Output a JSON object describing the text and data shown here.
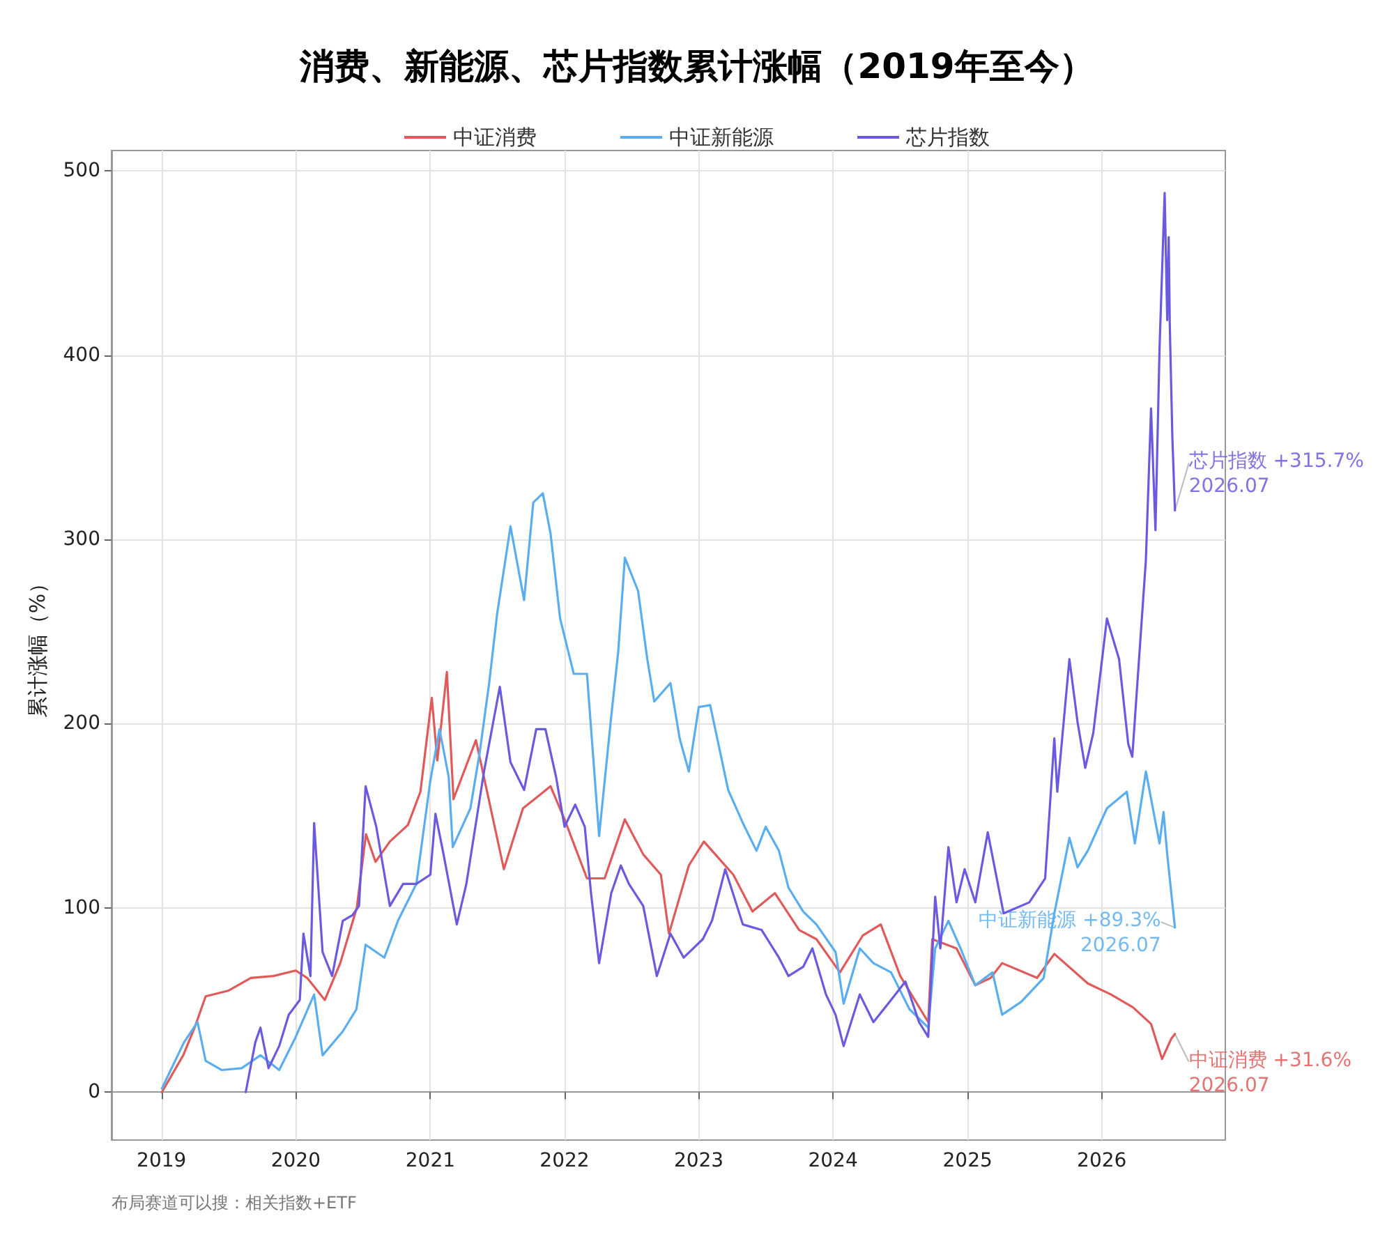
{
  "chart_data": {
    "type": "line",
    "title": "消费、新能源、芯片指数累计涨幅（2019年至今）",
    "ylabel": "累计涨幅（%）",
    "xlim": [
      "2018-08-18",
      "2026-12-03"
    ],
    "xticks": [
      "2019",
      "2020",
      "2021",
      "2022",
      "2023",
      "2024",
      "2025",
      "2026"
    ],
    "ylim": [
      -26,
      511
    ],
    "yticks": [
      0,
      100,
      200,
      300,
      400,
      500
    ],
    "grid": true,
    "legend": "top",
    "marker": "none",
    "line_style": "solid",
    "annotations": [
      {
        "text": "芯片指数 +315.7%\n2026.07",
        "x": "2026-07-19",
        "y": 315.7
      },
      {
        "text": "中证新能源 +89.3%\n2026.07",
        "x": "2026-07-19",
        "y": 89.3
      },
      {
        "text": "中证消费 +31.6%\n2026.07",
        "x": "2026-07-19",
        "y": 31.6
      },
      "布局赛道可以搜：相关指数+ETF"
    ],
    "series": [
      {
        "name": "中证消费",
        "color": "#e05a5a",
        "x": [
          "2019-01-02",
          "2019-03-01",
          "2019-04-01",
          "2019-05-01",
          "2019-07-01",
          "2019-09-01",
          "2019-11-01",
          "2020-01-01",
          "2020-02-01",
          "2020-03-20",
          "2020-05-01",
          "2020-06-15",
          "2020-07-10",
          "2020-08-05",
          "2020-09-13",
          "2020-11-01",
          "2020-12-05",
          "2021-01-05",
          "2021-01-20",
          "2021-02-15",
          "2021-03-05",
          "2021-05-05",
          "2021-07-20",
          "2021-09-10",
          "2021-11-24",
          "2022-01-01",
          "2022-03-03",
          "2022-04-20",
          "2022-06-14",
          "2022-08-03",
          "2022-09-20",
          "2022-10-12",
          "2022-12-05",
          "2023-01-15",
          "2023-04-05",
          "2023-05-27",
          "2023-07-27",
          "2023-10-01",
          "2023-11-17",
          "2024-01-20",
          "2024-03-22",
          "2024-05-10",
          "2024-07-02",
          "2024-09-16",
          "2024-09-27",
          "2024-12-02",
          "2025-01-22",
          "2025-03-05",
          "2025-04-05",
          "2025-07-09",
          "2025-08-25",
          "2025-11-24",
          "2026-01-26",
          "2026-03-27",
          "2026-05-15",
          "2026-06-14",
          "2026-07-09",
          "2026-07-19"
        ],
        "values": [
          0,
          20,
          35,
          52,
          55,
          62,
          63,
          66,
          62,
          50,
          70,
          100,
          140,
          125,
          136,
          145,
          163,
          214,
          180,
          228,
          159,
          191,
          121,
          154,
          166,
          148,
          116,
          116,
          148,
          129,
          118,
          86,
          123,
          136,
          118,
          98,
          108,
          88,
          83,
          65,
          85,
          91,
          63,
          38,
          83,
          78,
          58,
          62,
          70,
          62,
          75,
          59,
          53,
          46,
          37,
          18,
          29,
          31.6
        ]
      },
      {
        "name": "中证新能源",
        "color": "#5aaef0",
        "x": [
          "2019-01-02",
          "2019-03-03",
          "2019-04-09",
          "2019-05-01",
          "2019-06-14",
          "2019-08-07",
          "2019-09-27",
          "2019-11-17",
          "2020-01-01",
          "2020-02-20",
          "2020-03-14",
          "2020-05-08",
          "2020-06-14",
          "2020-07-09",
          "2020-08-29",
          "2020-10-05",
          "2020-11-24",
          "2021-01-01",
          "2021-01-26",
          "2021-02-20",
          "2021-03-03",
          "2021-04-20",
          "2021-05-15",
          "2021-06-10",
          "2021-07-02",
          "2021-08-07",
          "2021-09-13",
          "2021-10-08",
          "2021-11-03",
          "2021-11-24",
          "2021-12-20",
          "2022-01-26",
          "2022-03-03",
          "2022-04-05",
          "2022-05-08",
          "2022-05-27",
          "2022-06-14",
          "2022-07-20",
          "2022-08-14",
          "2022-09-02",
          "2022-10-16",
          "2022-11-10",
          "2022-12-05",
          "2023-01-01",
          "2023-02-01",
          "2023-03-22",
          "2023-05-01",
          "2023-06-07",
          "2023-07-02",
          "2023-08-07",
          "2023-09-02",
          "2023-10-12",
          "2023-11-17",
          "2024-01-08",
          "2024-01-30",
          "2024-03-14",
          "2024-04-20",
          "2024-06-07",
          "2024-07-27",
          "2024-09-16",
          "2024-10-05",
          "2024-11-10",
          "2024-12-13",
          "2025-01-22",
          "2025-03-10",
          "2025-04-05",
          "2025-05-27",
          "2025-07-27",
          "2025-08-25",
          "2025-10-05",
          "2025-10-27",
          "2025-11-24",
          "2026-01-15",
          "2026-03-10",
          "2026-04-01",
          "2026-05-01",
          "2026-06-07",
          "2026-06-18",
          "2026-06-28",
          "2026-07-19"
        ],
        "values": [
          2,
          27,
          38,
          17,
          12,
          13,
          20,
          12,
          30,
          53,
          20,
          33,
          45,
          80,
          73,
          93,
          113,
          169,
          197,
          171,
          133,
          154,
          184,
          222,
          260,
          307,
          267,
          320,
          325,
          303,
          257,
          227,
          227,
          139,
          204,
          239,
          290,
          272,
          235,
          212,
          222,
          192,
          174,
          209,
          210,
          164,
          146,
          131,
          144,
          131,
          111,
          98,
          91,
          76,
          48,
          78,
          70,
          65,
          45,
          35,
          78,
          93,
          78,
          58,
          65,
          42,
          49,
          62,
          97,
          138,
          122,
          131,
          154,
          163,
          135,
          174,
          135,
          152,
          129,
          89.3
        ]
      },
      {
        "name": "芯片指数",
        "color": "#6a5ae0",
        "x": [
          "2019-08-18",
          "2019-09-13",
          "2019-09-27",
          "2019-10-19",
          "2019-11-17",
          "2019-12-13",
          "2020-01-12",
          "2020-01-22",
          "2020-02-10",
          "2020-02-20",
          "2020-03-14",
          "2020-04-09",
          "2020-05-08",
          "2020-06-03",
          "2020-06-21",
          "2020-07-09",
          "2020-08-07",
          "2020-09-13",
          "2020-10-19",
          "2020-11-24",
          "2021-01-01",
          "2021-01-15",
          "2021-02-06",
          "2021-03-14",
          "2021-04-09",
          "2021-05-27",
          "2021-07-09",
          "2021-08-07",
          "2021-09-13",
          "2021-10-16",
          "2021-11-10",
          "2021-12-09",
          "2022-01-01",
          "2022-01-30",
          "2022-02-25",
          "2022-03-14",
          "2022-04-05",
          "2022-05-08",
          "2022-06-03",
          "2022-06-25",
          "2022-08-03",
          "2022-09-09",
          "2022-10-16",
          "2022-11-21",
          "2023-01-12",
          "2023-02-06",
          "2023-03-14",
          "2023-05-01",
          "2023-06-21",
          "2023-08-07",
          "2023-09-02",
          "2023-10-12",
          "2023-11-06",
          "2023-12-13",
          "2024-01-08",
          "2024-01-30",
          "2024-03-14",
          "2024-04-20",
          "2024-06-07",
          "2024-07-16",
          "2024-08-22",
          "2024-09-16",
          "2024-10-05",
          "2024-10-19",
          "2024-11-10",
          "2024-12-02",
          "2024-12-24",
          "2025-01-22",
          "2025-02-25",
          "2025-04-09",
          "2025-06-18",
          "2025-07-31",
          "2025-08-25",
          "2025-09-02",
          "2025-10-05",
          "2025-10-27",
          "2025-11-17",
          "2025-12-09",
          "2026-01-15",
          "2026-02-17",
          "2026-03-14",
          "2026-03-25",
          "2026-05-01",
          "2026-05-15",
          "2026-05-27",
          "2026-06-07",
          "2026-06-21",
          "2026-06-28",
          "2026-07-02",
          "2026-07-05",
          "2026-07-12",
          "2026-07-19"
        ],
        "values": [
          0,
          27,
          35,
          13,
          25,
          42,
          50,
          86,
          63,
          146,
          76,
          63,
          93,
          96,
          101,
          166,
          144,
          101,
          113,
          113,
          118,
          151,
          129,
          91,
          113,
          174,
          220,
          179,
          164,
          197,
          197,
          171,
          144,
          156,
          144,
          108,
          70,
          108,
          123,
          113,
          101,
          63,
          86,
          73,
          83,
          93,
          121,
          91,
          88,
          73,
          63,
          68,
          78,
          53,
          42,
          25,
          53,
          38,
          50,
          60,
          38,
          30,
          106,
          78,
          133,
          103,
          121,
          103,
          141,
          97,
          103,
          116,
          192,
          163,
          235,
          201,
          176,
          195,
          257,
          235,
          189,
          182,
          289,
          371,
          305,
          403,
          488,
          419,
          464,
          416,
          355,
          315.7
        ]
      }
    ]
  }
}
